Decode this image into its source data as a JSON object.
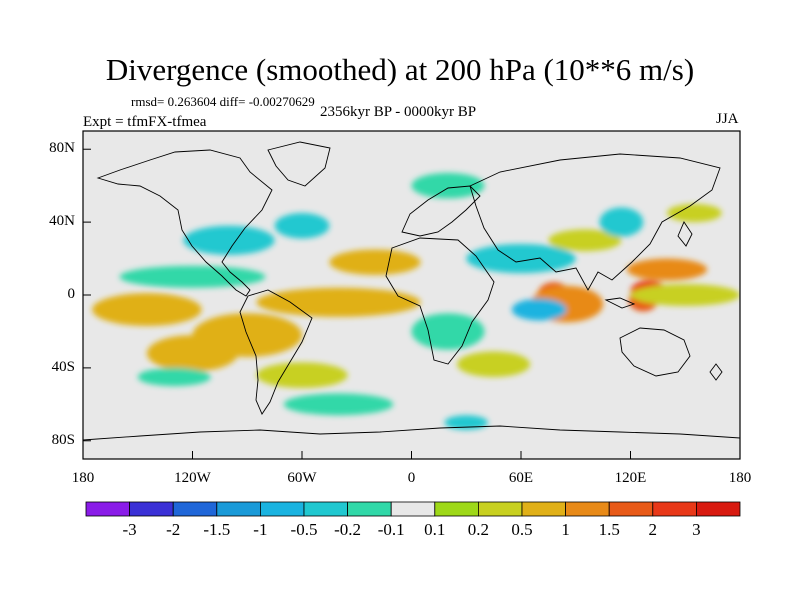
{
  "title": "Divergence (smoothed) at 200 hPa (10**6 m/s)",
  "stats": "rmsd= 0.263604 diff= -0.00270629",
  "period": "2356kyr BP - 0000kyr BP",
  "experiment": "Expt = tfmFX-tfmea",
  "season": "JJA",
  "chart_data": {
    "type": "heatmap",
    "projection": "cylindrical-equidistant",
    "variable": "200 hPa divergence difference (smoothed)",
    "units": "10**6 m/s",
    "x_range": [
      -180,
      180
    ],
    "y_range": [
      -90,
      90
    ],
    "lat_ticks": [
      {
        "value": 80,
        "label": "80N"
      },
      {
        "value": 40,
        "label": "40N"
      },
      {
        "value": 0,
        "label": "0"
      },
      {
        "value": -40,
        "label": "40S"
      },
      {
        "value": -80,
        "label": "80S"
      }
    ],
    "lon_ticks": [
      {
        "value": -180,
        "label": "180"
      },
      {
        "value": -120,
        "label": "120W"
      },
      {
        "value": -60,
        "label": "60W"
      },
      {
        "value": 0,
        "label": "0"
      },
      {
        "value": 60,
        "label": "60E"
      },
      {
        "value": 120,
        "label": "120E"
      },
      {
        "value": 180,
        "label": "180"
      }
    ],
    "colorbar": {
      "labels": [
        "-3",
        "-2",
        "-1.5",
        "-1",
        "-0.5",
        "-0.2",
        "-0.1",
        "0.1",
        "0.2",
        "0.5",
        "1",
        "1.5",
        "2",
        "3"
      ],
      "colors": [
        "#8a1ce8",
        "#3b30d6",
        "#1f66d8",
        "#1a9ad8",
        "#1ab3e0",
        "#20c8d0",
        "#30d8a8",
        "#e8e8e8",
        "#9ed818",
        "#c8d020",
        "#e0b018",
        "#e88a18",
        "#e85a18",
        "#e83818",
        "#d81a10"
      ]
    },
    "regions": [
      {
        "lon": 130,
        "lat": 2,
        "rx": 10,
        "ry": 6,
        "value": 2
      },
      {
        "lon": 127,
        "lat": -3,
        "rx": 8,
        "ry": 6,
        "value": 1.5
      },
      {
        "lon": 78,
        "lat": 0,
        "rx": 9,
        "ry": 7,
        "value": 1.5
      },
      {
        "lon": 140,
        "lat": 14,
        "rx": 22,
        "ry": 6,
        "value": 1
      },
      {
        "lon": 85,
        "lat": -5,
        "rx": 20,
        "ry": 10,
        "value": 1
      },
      {
        "lon": -145,
        "lat": -8,
        "rx": 30,
        "ry": 9,
        "value": 0.5
      },
      {
        "lon": -90,
        "lat": -22,
        "rx": 30,
        "ry": 12,
        "value": 0.5
      },
      {
        "lon": -40,
        "lat": -4,
        "rx": 45,
        "ry": 8,
        "value": 0.5
      },
      {
        "lon": -20,
        "lat": 18,
        "rx": 25,
        "ry": 7,
        "value": 0.5
      },
      {
        "lon": -120,
        "lat": -32,
        "rx": 25,
        "ry": 10,
        "value": 0.5
      },
      {
        "lon": 150,
        "lat": 0,
        "rx": 30,
        "ry": 6,
        "value": 0.2
      },
      {
        "lon": 95,
        "lat": 30,
        "rx": 20,
        "ry": 6,
        "value": 0.2
      },
      {
        "lon": 155,
        "lat": 45,
        "rx": 15,
        "ry": 5,
        "value": 0.2
      },
      {
        "lon": -60,
        "lat": -44,
        "rx": 25,
        "ry": 7,
        "value": 0.2
      },
      {
        "lon": 45,
        "lat": -38,
        "rx": 20,
        "ry": 7,
        "value": 0.2
      },
      {
        "lon": 30,
        "lat": -70,
        "rx": 12,
        "ry": 4,
        "value": -0.5
      },
      {
        "lon": 70,
        "lat": -8,
        "rx": 15,
        "ry": 6,
        "value": -1
      },
      {
        "lon": 60,
        "lat": 20,
        "rx": 30,
        "ry": 8,
        "value": -0.5
      },
      {
        "lon": -100,
        "lat": 30,
        "rx": 25,
        "ry": 8,
        "value": -0.5
      },
      {
        "lon": -60,
        "lat": 38,
        "rx": 15,
        "ry": 7,
        "value": -0.5
      },
      {
        "lon": -120,
        "lat": 10,
        "rx": 40,
        "ry": 6,
        "value": -0.2
      },
      {
        "lon": 115,
        "lat": 40,
        "rx": 12,
        "ry": 8,
        "value": -0.5
      },
      {
        "lon": 20,
        "lat": 60,
        "rx": 20,
        "ry": 7,
        "value": -0.2
      },
      {
        "lon": -130,
        "lat": -45,
        "rx": 20,
        "ry": 5,
        "value": -0.2
      },
      {
        "lon": 20,
        "lat": -20,
        "rx": 20,
        "ry": 10,
        "value": -0.2
      },
      {
        "lon": -40,
        "lat": -60,
        "rx": 30,
        "ry": 6,
        "value": -0.2
      }
    ]
  }
}
